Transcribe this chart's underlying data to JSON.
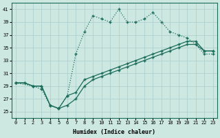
{
  "xlabel": "Humidex (Indice chaleur)",
  "bg_color": "#cce8e0",
  "grid_color": "#aacccc",
  "line_color": "#1a6b5a",
  "xlim": [
    -0.5,
    23.5
  ],
  "ylim": [
    24,
    42
  ],
  "yticks": [
    25,
    27,
    29,
    31,
    33,
    35,
    37,
    39,
    41
  ],
  "xticks": [
    0,
    1,
    2,
    3,
    4,
    5,
    6,
    7,
    8,
    9,
    10,
    11,
    12,
    13,
    14,
    15,
    16,
    17,
    18,
    19,
    20,
    21,
    22,
    23
  ],
  "line1_x": [
    0,
    1,
    2,
    3,
    4,
    5,
    6,
    7,
    8,
    9,
    10,
    11,
    12,
    13,
    14,
    15,
    16,
    17,
    18,
    19,
    20,
    21,
    22,
    23
  ],
  "line1_y": [
    29.5,
    29.5,
    29.0,
    29.0,
    26.0,
    25.5,
    27.5,
    28.0,
    30.0,
    30.5,
    31.0,
    31.5,
    32.0,
    32.5,
    33.0,
    33.5,
    34.0,
    34.5,
    35.0,
    35.5,
    36.0,
    36.0,
    34.5,
    34.5
  ],
  "line2_x": [
    0,
    1,
    2,
    3,
    4,
    5,
    6,
    7,
    8,
    9,
    10,
    11,
    12,
    13,
    14,
    15,
    16,
    17,
    18,
    19,
    20,
    21,
    22,
    23
  ],
  "line2_y": [
    29.5,
    29.5,
    29.0,
    29.0,
    26.0,
    25.5,
    26.0,
    27.0,
    29.0,
    30.0,
    30.5,
    31.0,
    31.5,
    32.0,
    32.5,
    33.0,
    33.5,
    34.0,
    34.5,
    35.0,
    35.5,
    35.5,
    34.5,
    34.5
  ],
  "line3_x": [
    0,
    2,
    3,
    4,
    5,
    6,
    7,
    8,
    9,
    10,
    11,
    12,
    13,
    14,
    15,
    16,
    17,
    18,
    19,
    20,
    21,
    22,
    23
  ],
  "line3_y": [
    29.5,
    29.0,
    28.5,
    26.0,
    25.5,
    27.5,
    34.0,
    37.5,
    40.0,
    39.5,
    39.0,
    41.0,
    39.0,
    39.0,
    39.5,
    40.5,
    39.0,
    37.5,
    37.0,
    36.5,
    35.5,
    34.0,
    34.0
  ]
}
